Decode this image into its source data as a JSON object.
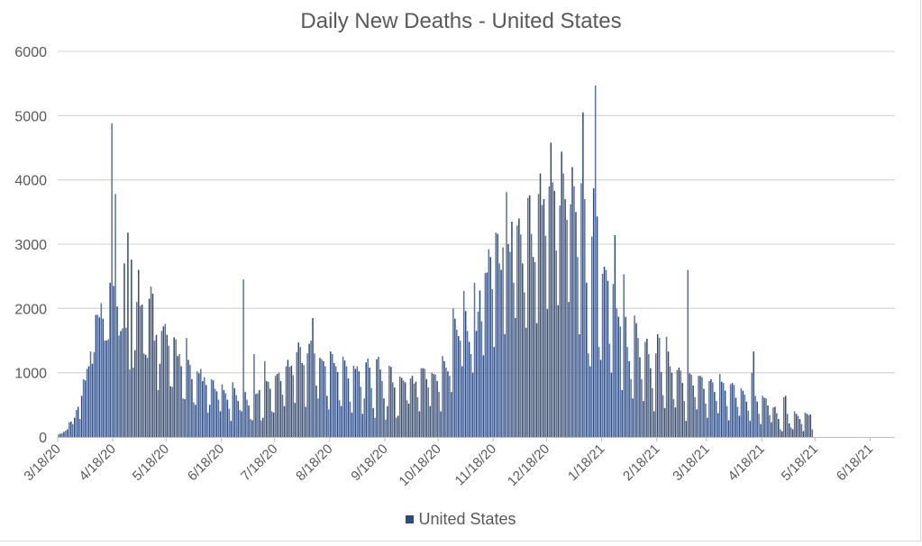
{
  "chart_data": {
    "type": "bar",
    "title": "Daily New Deaths - United States",
    "xlabel": "",
    "ylabel": "",
    "ylim": [
      0,
      6000
    ],
    "yticks": [
      0,
      1000,
      2000,
      3000,
      4000,
      5000,
      6000
    ],
    "xtick_labels": [
      "3/18/20",
      "4/18/20",
      "5/18/20",
      "6/18/20",
      "7/18/20",
      "8/18/20",
      "9/18/20",
      "10/18/20",
      "11/18/20",
      "12/18/20",
      "1/18/21",
      "2/18/21",
      "3/18/21",
      "4/18/21",
      "5/18/21",
      "6/18/21"
    ],
    "x_start": "3/18/20",
    "x_end": "7/1/21",
    "grid": true,
    "legend_position": "bottom",
    "color": "#2f4b7c",
    "series": [
      {
        "name": "United States",
        "values": [
          40,
          50,
          60,
          80,
          100,
          120,
          230,
          240,
          200,
          300,
          420,
          470,
          280,
          640,
          900,
          880,
          1060,
          1100,
          1330,
          1140,
          1320,
          1900,
          1900,
          1860,
          2080,
          1840,
          1500,
          1500,
          1520,
          2400,
          4880,
          2350,
          3780,
          2030,
          1580,
          1650,
          1690,
          2700,
          1700,
          3180,
          1050,
          2760,
          1080,
          1350,
          2100,
          2600,
          2040,
          2060,
          1300,
          1280,
          1230,
          2150,
          2340,
          2230,
          1500,
          1590,
          730,
          1140,
          1650,
          1720,
          1760,
          1590,
          1420,
          790,
          780,
          1550,
          1520,
          1260,
          1290,
          1100,
          600,
          590,
          1540,
          1200,
          1120,
          900,
          540,
          500,
          1020,
          990,
          1060,
          870,
          930,
          810,
          380,
          500,
          900,
          880,
          750,
          710,
          580,
          400,
          820,
          730,
          680,
          580,
          440,
          250,
          850,
          760,
          650,
          560,
          420,
          400,
          2450,
          700,
          580,
          490,
          280,
          260,
          1290,
          670,
          680,
          730,
          260,
          300,
          1180,
          870,
          860,
          750,
          400,
          380,
          950,
          980,
          1000,
          870,
          660,
          480,
          1100,
          1200,
          1090,
          1110,
          960,
          530,
          1320,
          1470,
          1400,
          1150,
          1120,
          470,
          1300,
          1450,
          1500,
          1850,
          1300,
          800,
          600,
          1230,
          1210,
          1180,
          1100,
          640,
          430,
          1330,
          1290,
          1150,
          1100,
          1010,
          570,
          480,
          1250,
          1190,
          1100,
          910,
          550,
          380,
          1110,
          1060,
          1100,
          1020,
          780,
          360,
          600,
          1160,
          1220,
          1080,
          760,
          450,
          300,
          1210,
          1250,
          1050,
          870,
          600,
          270,
          480,
          1110,
          1090,
          850,
          770,
          300,
          330,
          940,
          920,
          880,
          850,
          570,
          520,
          910,
          950,
          830,
          860,
          620,
          400,
          1070,
          1070,
          1060,
          900,
          770,
          480,
          1000,
          980,
          970,
          870,
          700,
          400,
          1260,
          1180,
          1080,
          1020,
          950,
          700,
          2000,
          1840,
          1670,
          1570,
          1500,
          1100,
          2270,
          1960,
          1650,
          1480,
          1290,
          1000,
          2400,
          1650,
          1950,
          2280,
          1800,
          1270,
          2550,
          2560,
          2920,
          2800,
          2300,
          1400,
          3180,
          3160,
          2700,
          2600,
          2950,
          1600,
          3810,
          3000,
          2880,
          3350,
          2400,
          1850,
          3290,
          3400,
          3150,
          2700,
          2250,
          1700,
          3720,
          3760,
          3160,
          2800,
          2720,
          1770,
          3780,
          4100,
          3610,
          3700,
          3130,
          1990,
          3900,
          4580,
          3960,
          3830,
          2900,
          2050,
          3600,
          4440,
          4100,
          3700,
          3380,
          2100,
          3620,
          4200,
          3900,
          3500,
          2800,
          1600,
          3950,
          5050,
          3700,
          2400,
          1300,
          1100,
          3120,
          3870,
          5470,
          3430,
          1400,
          1200,
          2540,
          2650,
          2600,
          2430,
          1450,
          1000,
          2380,
          3140,
          2000,
          1870,
          1720,
          730,
          2530,
          1870,
          1400,
          1180,
          900,
          600,
          1890,
          1770,
          1540,
          1240,
          900,
          560,
          1480,
          1530,
          1290,
          1070,
          760,
          400,
          1300,
          1600,
          1540,
          1010,
          650,
          450,
          1560,
          1330,
          1100,
          1000,
          590,
          460,
          1040,
          1080,
          1030,
          840,
          560,
          250,
          2600,
          990,
          970,
          800,
          620,
          430,
          950,
          950,
          930,
          750,
          520,
          300,
          870,
          900,
          850,
          700,
          560,
          370,
          980,
          860,
          840,
          720,
          480,
          260,
          820,
          840,
          810,
          610,
          470,
          330,
          760,
          720,
          660,
          550,
          410,
          250,
          1000,
          1330,
          640,
          550,
          360,
          200,
          640,
          610,
          600,
          490,
          340,
          230,
          460,
          470,
          370,
          280,
          120,
          90,
          620,
          640,
          360,
          210,
          150,
          120,
          400,
          360,
          330,
          280,
          200,
          90,
          380,
          360,
          340,
          350,
          120
        ]
      }
    ]
  }
}
